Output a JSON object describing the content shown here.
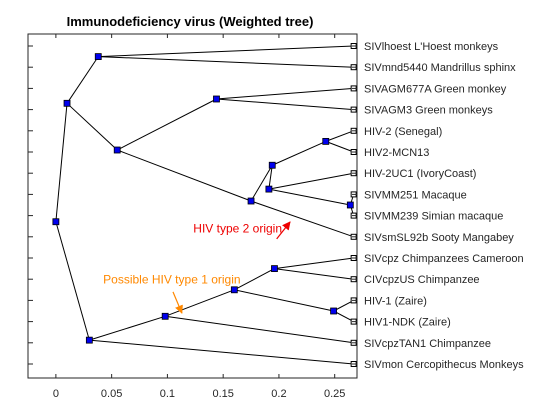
{
  "chart_data": {
    "type": "phylogenetic-tree",
    "title": "Immunodeficiency virus (Weighted tree)",
    "xlim": [
      -0.025,
      0.27
    ],
    "xticks": [
      0,
      0.05,
      0.1,
      0.15,
      0.2,
      0.25
    ],
    "xtick_labels": [
      "0",
      "0.05",
      "0.1",
      "0.15",
      "0.2",
      "0.25"
    ],
    "grid": false,
    "leaf_x": 0.267,
    "node_color": "#0000ee",
    "leaves": [
      "SIVlhoest L'Hoest monkeys",
      "SIVmnd5440 Mandrillus sphinx",
      "SIVAGM677A Green monkey",
      "SIVAGM3 Green monkeys",
      "HIV-2 (Senegal)",
      "HIV2-MCN13",
      "HIV-2UC1 (IvoryCoast)",
      "SIVMM251 Macaque",
      "SIVMM239 Simian macaque",
      "SIVsmSL92b Sooty Mangabey",
      "SIVcpz Chimpanzees Cameroon",
      "CIVcpzUS Chimpanzee",
      "HIV-1 (Zaire)",
      "HIV1-NDK (Zaire)",
      "SIVcpzTAN1 Chimpanzee",
      "SIVmon Cercopithecus Monkeys"
    ],
    "nodes": [
      {
        "id": "n1",
        "x": 0.038,
        "children": [
          "L0",
          "L1"
        ]
      },
      {
        "id": "n2",
        "x": 0.144,
        "children": [
          "L2",
          "L3"
        ]
      },
      {
        "id": "n3",
        "x": 0.242,
        "children": [
          "L4",
          "L5"
        ]
      },
      {
        "id": "n4",
        "x": 0.264,
        "children": [
          "L7",
          "L8"
        ]
      },
      {
        "id": "n5",
        "x": 0.191,
        "children": [
          "L6",
          "n4"
        ]
      },
      {
        "id": "n6",
        "x": 0.194,
        "children": [
          "n3",
          "n5"
        ]
      },
      {
        "id": "n7",
        "x": 0.175,
        "children": [
          "n6",
          "L9"
        ]
      },
      {
        "id": "n8",
        "x": 0.055,
        "children": [
          "n2",
          "n7"
        ]
      },
      {
        "id": "n9",
        "x": 0.01,
        "children": [
          "n1",
          "n8"
        ]
      },
      {
        "id": "n10",
        "x": 0.196,
        "children": [
          "L10",
          "L11"
        ]
      },
      {
        "id": "n11",
        "x": 0.249,
        "children": [
          "L12",
          "L13"
        ]
      },
      {
        "id": "n12",
        "x": 0.16,
        "children": [
          "n10",
          "n11"
        ]
      },
      {
        "id": "n13",
        "x": 0.098,
        "children": [
          "n12",
          "L14"
        ]
      },
      {
        "id": "n14",
        "x": 0.03,
        "children": [
          "n13",
          "L15"
        ]
      },
      {
        "id": "n15",
        "x": 0.0,
        "children": [
          "n9",
          "n14"
        ]
      }
    ],
    "annotations": [
      {
        "text": "HIV type 2 origin",
        "color": "#ee0000",
        "text_x": 0.163,
        "text_y": 8.8,
        "arrow_from_x": 0.198,
        "arrow_from_y": 9.1,
        "arrow_to_x": 0.21,
        "arrow_to_y": 8.3
      },
      {
        "text": "Possible HIV type 1 origin",
        "color": "#ff8800",
        "text_x": 0.104,
        "text_y": 11.2,
        "arrow_from_x": 0.105,
        "arrow_from_y": 11.6,
        "arrow_to_x": 0.113,
        "arrow_to_y": 12.6
      }
    ]
  }
}
